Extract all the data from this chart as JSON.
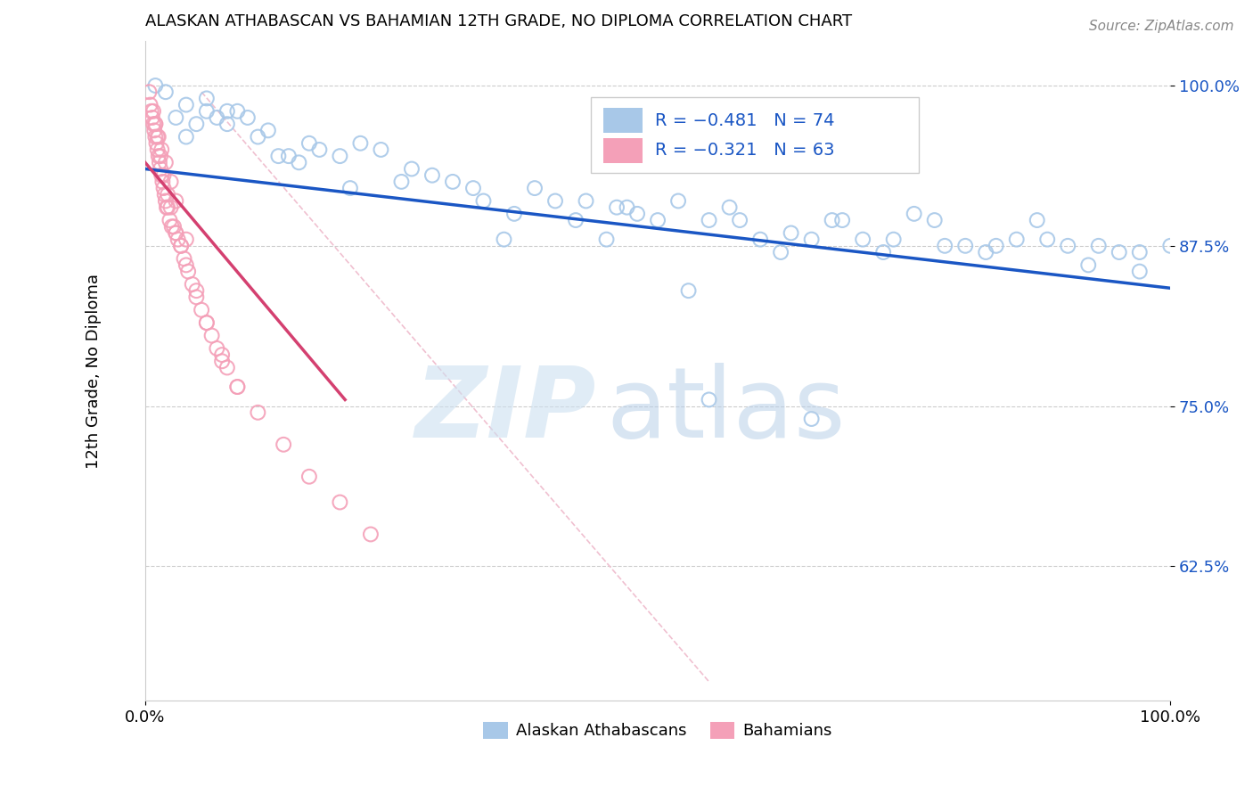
{
  "title": "ALASKAN ATHABASCAN VS BAHAMIAN 12TH GRADE, NO DIPLOMA CORRELATION CHART",
  "source": "Source: ZipAtlas.com",
  "ylabel": "12th Grade, No Diploma",
  "xmin": 0.0,
  "xmax": 1.0,
  "ymin": 0.52,
  "ymax": 1.035,
  "yticks": [
    0.625,
    0.75,
    0.875,
    1.0
  ],
  "ytick_labels": [
    "62.5%",
    "75.0%",
    "87.5%",
    "100.0%"
  ],
  "xticks": [
    0.0,
    1.0
  ],
  "xtick_labels": [
    "0.0%",
    "100.0%"
  ],
  "blue_color": "#a8c8e8",
  "blue_line_color": "#1a56c4",
  "pink_color": "#f4a0b8",
  "pink_line_color": "#d44070",
  "ref_line_color": "#f0c0d0",
  "grid_color": "#cccccc",
  "blue_scatter_x": [
    0.01,
    0.03,
    0.04,
    0.05,
    0.06,
    0.07,
    0.08,
    0.09,
    0.11,
    0.13,
    0.14,
    0.15,
    0.16,
    0.17,
    0.19,
    0.21,
    0.23,
    0.26,
    0.28,
    0.3,
    0.33,
    0.36,
    0.38,
    0.4,
    0.43,
    0.46,
    0.48,
    0.5,
    0.52,
    0.55,
    0.58,
    0.6,
    0.63,
    0.65,
    0.68,
    0.7,
    0.73,
    0.75,
    0.78,
    0.8,
    0.83,
    0.85,
    0.88,
    0.9,
    0.93,
    0.95,
    0.97,
    1.0,
    0.02,
    0.04,
    0.06,
    0.08,
    0.1,
    0.12,
    0.2,
    0.25,
    0.32,
    0.42,
    0.53,
    0.62,
    0.72,
    0.82,
    0.92,
    0.47,
    0.57,
    0.67,
    0.77,
    0.87,
    0.97,
    0.35,
    0.45,
    0.55,
    0.65
  ],
  "blue_scatter_y": [
    1.0,
    0.975,
    0.96,
    0.97,
    0.98,
    0.975,
    0.97,
    0.98,
    0.96,
    0.945,
    0.945,
    0.94,
    0.955,
    0.95,
    0.945,
    0.955,
    0.95,
    0.935,
    0.93,
    0.925,
    0.91,
    0.9,
    0.92,
    0.91,
    0.91,
    0.905,
    0.9,
    0.895,
    0.91,
    0.895,
    0.895,
    0.88,
    0.885,
    0.88,
    0.895,
    0.88,
    0.88,
    0.9,
    0.875,
    0.875,
    0.875,
    0.88,
    0.88,
    0.875,
    0.875,
    0.87,
    0.87,
    0.875,
    0.995,
    0.985,
    0.99,
    0.98,
    0.975,
    0.965,
    0.92,
    0.925,
    0.92,
    0.895,
    0.84,
    0.87,
    0.87,
    0.87,
    0.86,
    0.905,
    0.905,
    0.895,
    0.895,
    0.895,
    0.855,
    0.88,
    0.88,
    0.755,
    0.74
  ],
  "pink_scatter_x": [
    0.004,
    0.005,
    0.006,
    0.007,
    0.008,
    0.009,
    0.01,
    0.011,
    0.012,
    0.013,
    0.014,
    0.015,
    0.016,
    0.017,
    0.018,
    0.019,
    0.02,
    0.021,
    0.022,
    0.024,
    0.026,
    0.028,
    0.03,
    0.032,
    0.035,
    0.038,
    0.042,
    0.046,
    0.05,
    0.055,
    0.06,
    0.065,
    0.07,
    0.075,
    0.08,
    0.09,
    0.01,
    0.012,
    0.015,
    0.018,
    0.022,
    0.025,
    0.03,
    0.035,
    0.04,
    0.05,
    0.06,
    0.075,
    0.09,
    0.11,
    0.135,
    0.16,
    0.19,
    0.22,
    0.008,
    0.01,
    0.013,
    0.016,
    0.02,
    0.025,
    0.03,
    0.04
  ],
  "pink_scatter_y": [
    0.995,
    0.985,
    0.98,
    0.975,
    0.97,
    0.965,
    0.96,
    0.955,
    0.95,
    0.945,
    0.94,
    0.935,
    0.93,
    0.925,
    0.92,
    0.915,
    0.91,
    0.905,
    0.905,
    0.895,
    0.89,
    0.89,
    0.885,
    0.88,
    0.875,
    0.865,
    0.855,
    0.845,
    0.835,
    0.825,
    0.815,
    0.805,
    0.795,
    0.785,
    0.78,
    0.765,
    0.97,
    0.96,
    0.945,
    0.93,
    0.915,
    0.905,
    0.885,
    0.875,
    0.86,
    0.84,
    0.815,
    0.79,
    0.765,
    0.745,
    0.72,
    0.695,
    0.675,
    0.65,
    0.98,
    0.97,
    0.96,
    0.95,
    0.94,
    0.925,
    0.91,
    0.88
  ],
  "blue_trend_x": [
    0.0,
    1.0
  ],
  "blue_trend_y": [
    0.935,
    0.842
  ],
  "pink_trend_x": [
    0.0,
    0.195
  ],
  "pink_trend_y": [
    0.94,
    0.755
  ],
  "ref_line_x": [
    0.055,
    0.55
  ],
  "ref_line_y": [
    0.995,
    0.535
  ]
}
